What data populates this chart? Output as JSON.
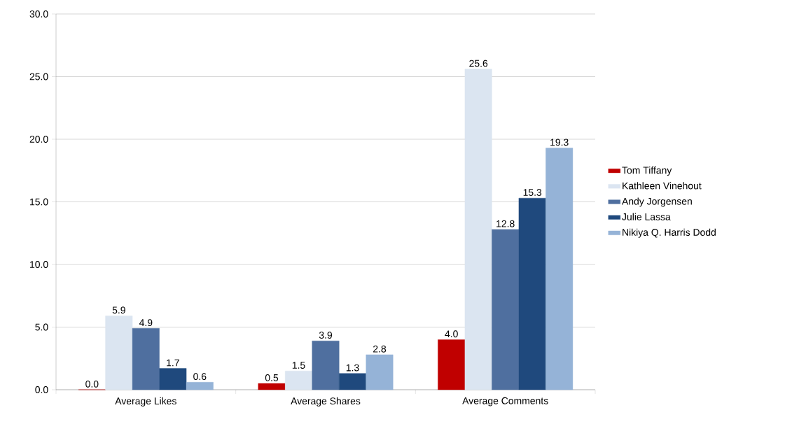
{
  "chart_data": {
    "type": "bar",
    "categories": [
      "Average Likes",
      "Average Shares",
      "Average Comments"
    ],
    "series": [
      {
        "name": "Tom Tiffany",
        "color": "#c00000",
        "values": [
          0.0,
          0.5,
          4.0
        ],
        "value_labels": [
          "0.0",
          "0.5",
          "4.0"
        ]
      },
      {
        "name": "Kathleen Vinehout",
        "color": "#dbe5f1",
        "values": [
          5.9,
          1.5,
          25.6
        ],
        "value_labels": [
          "5.9",
          "1.5",
          "25.6"
        ]
      },
      {
        "name": "Andy Jorgensen",
        "color": "#4f6f9f",
        "values": [
          4.9,
          3.9,
          12.8
        ],
        "value_labels": [
          "4.9",
          "3.9",
          "12.8"
        ]
      },
      {
        "name": "Julie Lassa",
        "color": "#1f497d",
        "values": [
          1.7,
          1.3,
          15.3
        ],
        "value_labels": [
          "1.7",
          "1.3",
          "15.3"
        ]
      },
      {
        "name": "Nikiya Q. Harris Dodd",
        "color": "#95b3d7",
        "values": [
          0.6,
          2.8,
          19.3
        ],
        "value_labels": [
          "0.6",
          "2.8",
          "19.3"
        ]
      }
    ],
    "ylim": [
      0,
      30
    ],
    "yticks": [
      {
        "value": 0,
        "label": "0.0"
      },
      {
        "value": 5,
        "label": "5.0"
      },
      {
        "value": 10,
        "label": "10.0"
      },
      {
        "value": 15,
        "label": "15.0"
      },
      {
        "value": 20,
        "label": "20.0"
      },
      {
        "value": 25,
        "label": "25.0"
      },
      {
        "value": 30,
        "label": "30.0"
      }
    ],
    "grid": "y",
    "legend": "right"
  }
}
